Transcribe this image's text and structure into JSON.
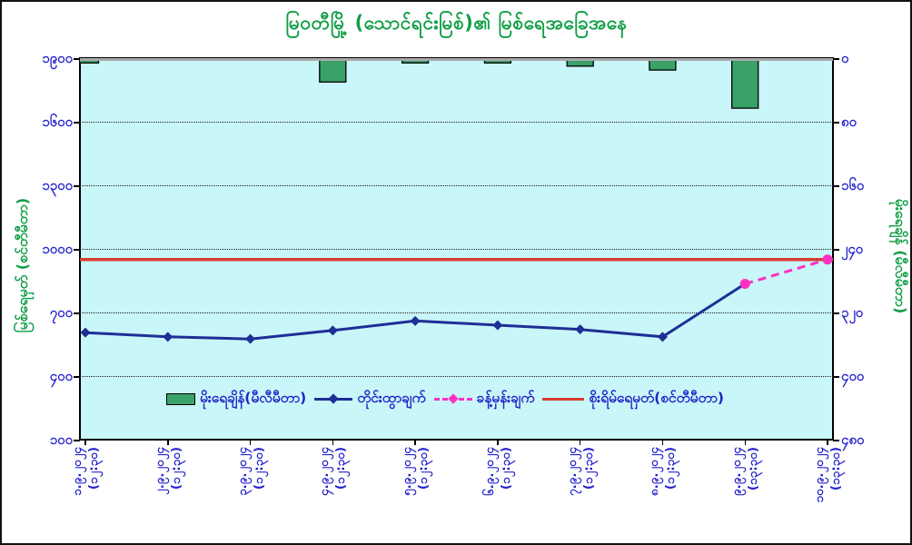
{
  "title": "မြဝတီမြို့ (သောင်ရင်းမြစ်)၏ မြစ်ရေအခြေအနေ",
  "left_axis": {
    "title": "မြစ်ရေမှတ် (စင်တီမီတာ)",
    "tick_labels": [
      "၁၉၀၀",
      "၁၆၀၀",
      "၁၃၀၀",
      "၁၀၀၀",
      "၇၀၀",
      "၄၀၀",
      "၁၀၀"
    ]
  },
  "right_axis": {
    "title": "မိုးရေချိန် (မီလီမီတာ)",
    "tick_labels": [
      "၀",
      "၈၀",
      "၁၆၀",
      "၂၄၀",
      "၃၂၀",
      "၄၀၀",
      "၄၈၀"
    ]
  },
  "x_axis": {
    "dates": [
      "၁.၉.၂၀၂၄",
      "၂.၉.၂၀၂၄",
      "၃.၉.၂၀၂၄",
      "၄.၉.၂၀၂၄",
      "၅.၉.၂၀၂၄",
      "၆.၉.၂၀၂၄",
      "၇.၉.၂၀၂၄",
      "၈.၉.၂၀၂၄",
      "၉.၉.၂၀၂၄",
      "၁၀.၉.၂၀၂၄"
    ],
    "times": [
      "(၁၂:၃၀)",
      "(၁၂:၃၀)",
      "(၁၂:၃၀)",
      "(၁၂:၃၀)",
      "(၁၂:၃၀)",
      "(၁၂:၃၀)",
      "(၁၂:၃၀)",
      "(၁၂:၃၀)",
      "(၁၃:၃၀)",
      "(၁၃:၃၀)"
    ]
  },
  "legend": [
    {
      "label": "မိုးရေချိန်(မီလီမီတာ)"
    },
    {
      "label": "တိုင်းထွာချက်"
    },
    {
      "label": "ခန့်မှန်းချက်"
    },
    {
      "label": "စိုးရိမ်ရေမှတ်(စင်တီမီတာ)"
    }
  ],
  "colors": {
    "title_green": "#0f9e44",
    "axis_label_blue": "#2525ce",
    "plot_background": "#c9f6f8",
    "rainfall_bar": "#3aa269",
    "measured_line": "#1e2f96",
    "forecast_line": "#fb30c3",
    "danger_line": "#d93c30"
  },
  "chart_data": {
    "type": "line",
    "combo_types": [
      "bar",
      "line",
      "line-dashed",
      "hline"
    ],
    "title": "မြဝတီမြို့ (သောင်ရင်းမြစ်)၏ မြစ်ရေအခြေအနေ",
    "categories": [
      "၁.၉.၂၀၂၄ (၁၂:၃၀)",
      "၂.၉.၂၀၂၄ (၁၂:၃၀)",
      "၃.၉.၂၀၂၄ (၁၂:၃၀)",
      "၄.၉.၂၀၂၄ (၁၂:၃၀)",
      "၅.၉.၂၀၂၄ (၁၂:၃၀)",
      "၆.၉.၂၀၂၄ (၁၂:၃၀)",
      "၇.၉.၂၀၂၄ (၁၂:၃၀)",
      "၈.၉.၂၀၂၄ (၁၂:၃၀)",
      "၉.၉.၂၀၂၄ (၁၃:၃၀)",
      "၁၀.၉.၂၀၂၄ (၁၃:၃၀)"
    ],
    "series": [
      {
        "name": "မိုးရေချိန်(မီလီမီတာ)",
        "type": "bar",
        "axis": "right",
        "unit": "mm",
        "values": [
          6,
          0,
          0,
          30,
          6,
          6,
          10,
          15,
          63,
          0
        ]
      },
      {
        "name": "တိုင်းထွာချက်",
        "type": "line",
        "axis": "left",
        "unit": "cm",
        "values": [
          605,
          585,
          575,
          615,
          660,
          640,
          620,
          585,
          835,
          null
        ]
      },
      {
        "name": "ခန့်မှန်းချက်",
        "type": "line-dashed",
        "axis": "left",
        "unit": "cm",
        "values": [
          null,
          null,
          null,
          null,
          null,
          null,
          null,
          null,
          835,
          950
        ]
      },
      {
        "name": "စိုးရိမ်ရေမှတ်(စင်တီမီတာ)",
        "type": "hline",
        "axis": "left",
        "unit": "cm",
        "value": 950
      }
    ],
    "ylabel_left": "မြစ်ရေမှတ် (စင်တီမီတာ)",
    "ylabel_right": "မိုးရေချိန် (မီလီမီတာ)",
    "left_axis_range": [
      100,
      1900
    ],
    "left_tick_step": 300,
    "right_axis_range": [
      0,
      480
    ],
    "right_tick_step": 80,
    "right_axis_inverted": true,
    "grid": "horizontal-dotted",
    "legend_position": "bottom-inside"
  }
}
